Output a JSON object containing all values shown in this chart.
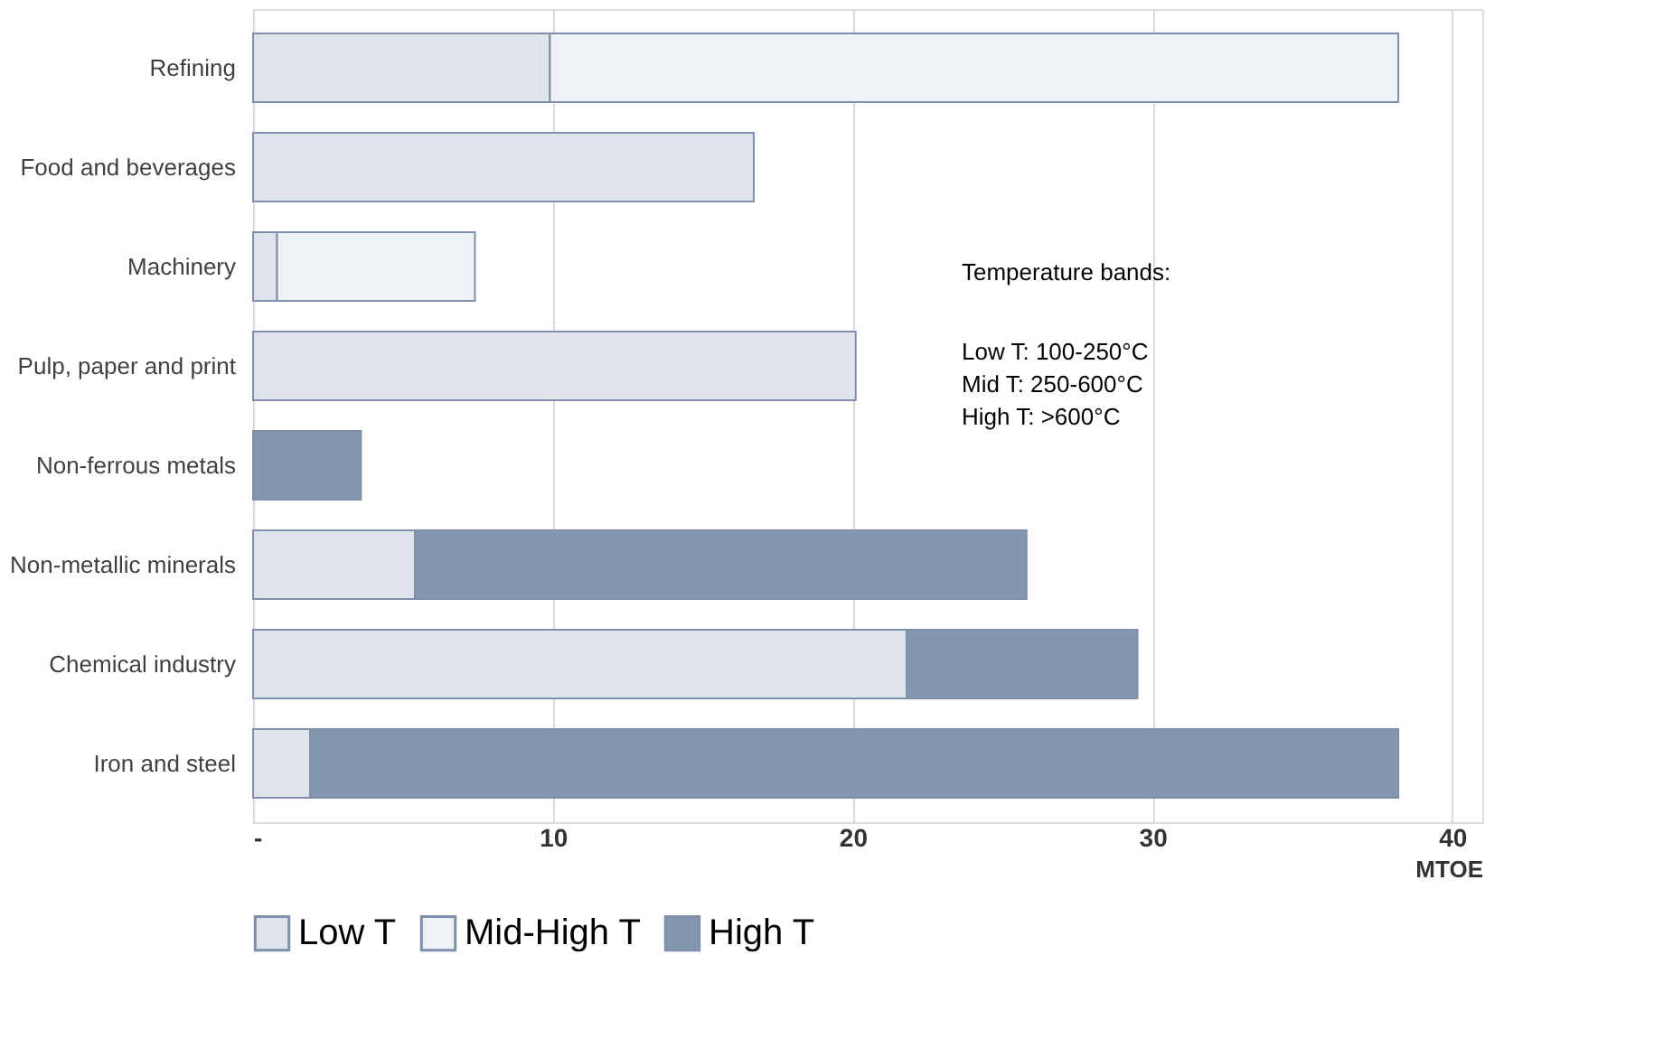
{
  "chart_data": {
    "type": "bar",
    "orientation": "horizontal",
    "stacked": true,
    "categories": [
      "Refining",
      "Food and beverages",
      "Machinery",
      "Pulp, paper and print",
      "Non-ferrous metals",
      "Non-metallic minerals",
      "Chemical industry",
      "Iron and steel"
    ],
    "series": [
      {
        "name": "Low T",
        "color": "#dfe4ec",
        "values": [
          9.9,
          16.7,
          0.8,
          20.1,
          null,
          5.4,
          21.8,
          1.9
        ]
      },
      {
        "name": "Mid-High T",
        "color": "#eef1f6",
        "values": [
          28.3,
          null,
          6.6,
          null,
          null,
          null,
          null,
          null
        ]
      },
      {
        "name": "High T",
        "color": "#8497b0",
        "values": [
          null,
          null,
          null,
          null,
          3.6,
          20.4,
          7.7,
          36.3
        ]
      }
    ],
    "xlim": [
      0,
      41
    ],
    "xticks": [
      {
        "value": 0,
        "label": "-"
      },
      10,
      20,
      30,
      40
    ],
    "xlabel": "MTOE",
    "grid": "x",
    "legend": "bottom",
    "annotations": [
      "Temperature bands:",
      "Low T: 100-250°C",
      "Mid T: 250-600°C",
      "High T: >600°C"
    ]
  }
}
